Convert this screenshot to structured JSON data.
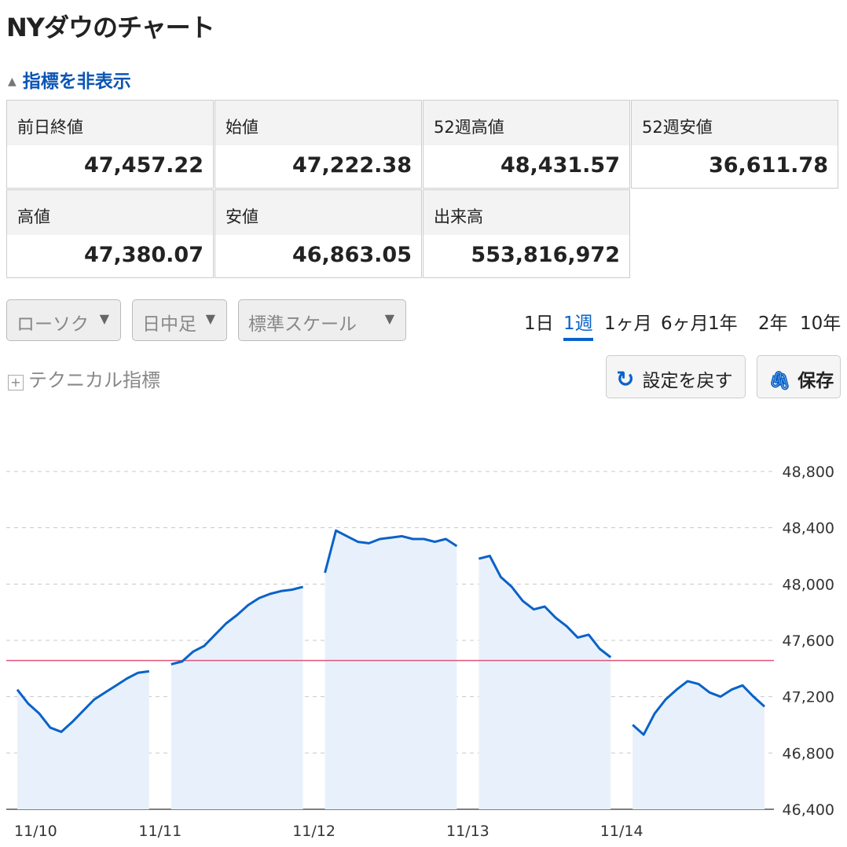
{
  "header": {
    "title": "NYダウのチャート",
    "toggle": "指標を非表示"
  },
  "table": {
    "rows": [
      [
        {
          "label": "前日終値",
          "value": "47,457.22"
        },
        {
          "label": "始値",
          "value": "47,222.38"
        },
        {
          "label": "52週高値",
          "value": "48,431.57"
        },
        {
          "label": "52週安値",
          "value": "36,611.78"
        }
      ],
      [
        {
          "label": "高値",
          "value": "47,380.07"
        },
        {
          "label": "安値",
          "value": "46,863.05"
        },
        {
          "label": "出来高",
          "value": "553,816,972"
        }
      ]
    ]
  },
  "controls": {
    "dropdowns": [
      "ローソク",
      "日中足",
      "標準スケール"
    ],
    "periods": [
      "1日",
      "1週",
      "1ヶ月",
      "6ヶ月",
      "1年",
      "2年",
      "10年"
    ],
    "selected_period": 1,
    "technical": "テクニカル指標",
    "reset": "設定を戻す",
    "save": "保存"
  },
  "chart_data": {
    "type": "line",
    "categories": [
      "11/10",
      null,
      null,
      null,
      null,
      null,
      null,
      null,
      null,
      null,
      null,
      null,
      null,
      null,
      "11/11",
      null,
      null,
      null,
      null,
      null,
      null,
      null,
      null,
      null,
      null,
      null,
      null,
      null,
      "11/12",
      null,
      null,
      null,
      null,
      null,
      null,
      null,
      null,
      null,
      null,
      null,
      null,
      null,
      "11/13",
      null,
      null,
      null,
      null,
      null,
      null,
      null,
      null,
      null,
      null,
      null,
      null,
      null,
      "11/14",
      null,
      null,
      null,
      null,
      null,
      null,
      null,
      null,
      null,
      null,
      null,
      null
    ],
    "series": [
      {
        "color": "#0a62c9",
        "values": [
          47250,
          47150,
          47080,
          46980,
          46950,
          47020,
          47100,
          47180,
          47230,
          47280,
          47330,
          47370,
          47380,
          null,
          47430,
          47450,
          47520,
          47560,
          47640,
          47720,
          47780,
          47850,
          47900,
          47930,
          47950,
          47960,
          47980,
          null,
          48080,
          48380,
          48340,
          48300,
          48290,
          48320,
          48330,
          48340,
          48320,
          48320,
          48300,
          48320,
          48270,
          null,
          48180,
          48200,
          48050,
          47980,
          47880,
          47820,
          47840,
          47760,
          47700,
          47620,
          47640,
          47540,
          47480,
          null,
          47000,
          46930,
          47080,
          47180,
          47250,
          47310,
          47290,
          47230,
          47200,
          47250,
          47280,
          47200,
          47130
        ]
      }
    ],
    "area_color": "#e8f1fb",
    "reference": 47457.22,
    "reference_color": "#e0557a",
    "ylim": [
      46400,
      48800
    ],
    "yticks": [
      {
        "value": 46400,
        "label": "46,400"
      },
      {
        "value": 46800,
        "label": "46,800"
      },
      {
        "value": 47200,
        "label": "47,200"
      },
      {
        "value": 47600,
        "label": "47,600"
      },
      {
        "value": 48000,
        "label": "48,000"
      },
      {
        "value": 48400,
        "label": "48,400"
      },
      {
        "value": 48800,
        "label": "48,800"
      }
    ],
    "grid": true
  }
}
